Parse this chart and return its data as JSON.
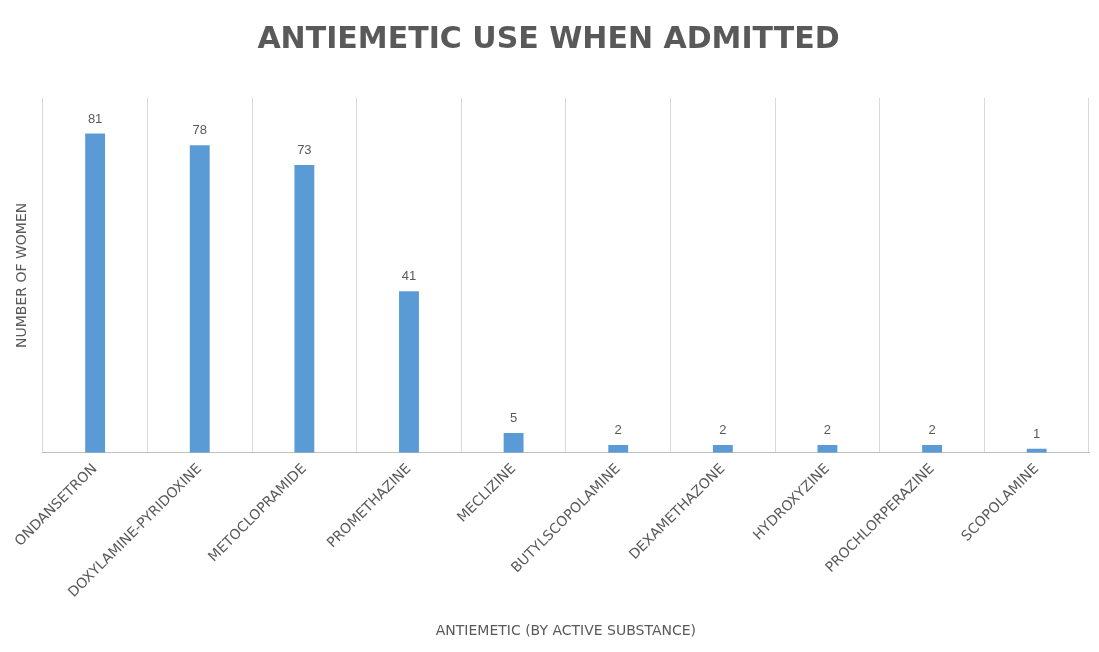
{
  "chart_data": {
    "type": "bar",
    "title": "ANTIEMETIC USE WHEN ADMITTED",
    "xlabel": "ANTIEMETIC (BY ACTIVE SUBSTANCE)",
    "ylabel": "NUMBER OF WOMEN",
    "categories": [
      "ONDANSETRON",
      "DOXYLAMINE-PYRIDOXINE",
      "METOCLOPRAMIDE",
      "PROMETHAZINE",
      "MECLIZINE",
      "BUTYLSCOPOLAMINE",
      "DEXAMETHAZONE",
      "HYDROXYZINE",
      "PROCHLORPERAZINE",
      "SCOPOLAMINE"
    ],
    "values": [
      81,
      78,
      73,
      41,
      5,
      2,
      2,
      2,
      2,
      1
    ],
    "color": "#5b9bd5",
    "data_labels": true,
    "grid": "x",
    "legend": false
  }
}
